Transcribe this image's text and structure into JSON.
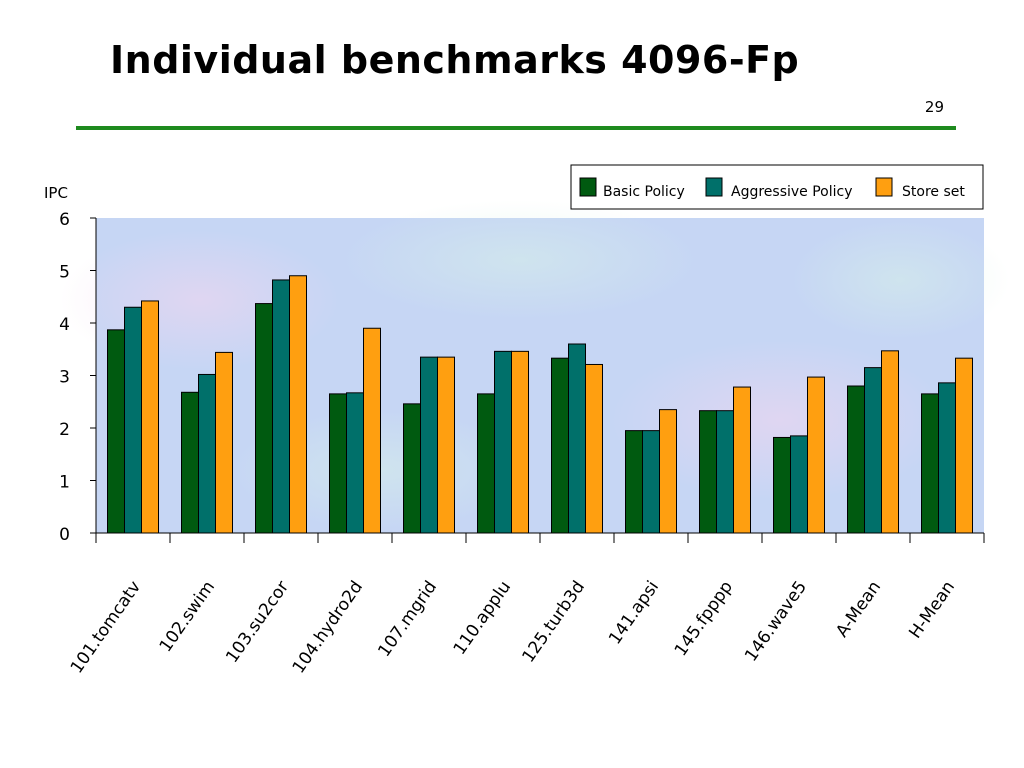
{
  "slide": {
    "title": "Individual benchmarks 4096-Fp",
    "page_number": "29"
  },
  "colors": {
    "rule": "#1e8a1e",
    "basic": "#005a10",
    "aggressive": "#00706a",
    "storeset": "#ff9f10"
  },
  "chart_data": {
    "type": "bar",
    "title": "",
    "xlabel": "",
    "ylabel": "IPC",
    "ylim": [
      0,
      6
    ],
    "yticks": [
      0,
      1,
      2,
      3,
      4,
      5,
      6
    ],
    "grid": false,
    "legend_position": "top-right",
    "categories": [
      "101.tomcatv",
      "102.swim",
      "103.su2cor",
      "104.hydro2d",
      "107.mgrid",
      "110.applu",
      "125.turb3d",
      "141.apsi",
      "145.fpppp",
      "146.wave5",
      "A-Mean",
      "H-Mean"
    ],
    "series": [
      {
        "name": "Basic Policy",
        "color": "#005a10",
        "values": [
          3.87,
          2.68,
          4.37,
          2.65,
          2.46,
          2.65,
          3.33,
          1.95,
          2.33,
          1.82,
          2.8,
          2.65
        ]
      },
      {
        "name": "Aggressive Policy",
        "color": "#00706a",
        "values": [
          4.3,
          3.02,
          4.82,
          2.67,
          3.35,
          3.46,
          3.6,
          1.95,
          2.33,
          1.85,
          3.15,
          2.86
        ]
      },
      {
        "name": "Store set",
        "color": "#ff9f10",
        "values": [
          4.42,
          3.44,
          4.9,
          3.9,
          3.35,
          3.46,
          3.21,
          2.35,
          2.78,
          2.97,
          3.47,
          3.33
        ]
      }
    ]
  }
}
